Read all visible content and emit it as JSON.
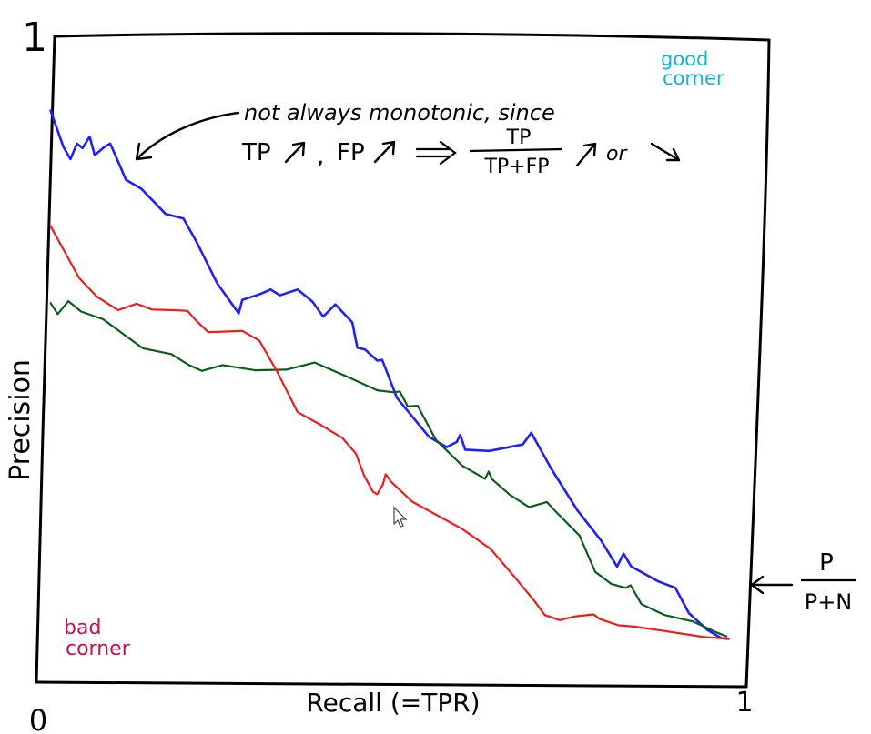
{
  "chart_data": {
    "type": "line",
    "xlabel": "Recall (=TPR)",
    "ylabel": "Precision",
    "x_ticks": [
      "0",
      "1"
    ],
    "y_ticks": [
      "1"
    ],
    "xlim": [
      0,
      1
    ],
    "ylim": [
      0,
      1
    ],
    "grid": false,
    "legend": "none",
    "series": [
      {
        "color": "#1f1fff",
        "stroke_width": 2.6,
        "points": [
          [
            0.02,
            0.885
          ],
          [
            0.038,
            0.829
          ],
          [
            0.048,
            0.81
          ],
          [
            0.057,
            0.834
          ],
          [
            0.065,
            0.827
          ],
          [
            0.075,
            0.845
          ],
          [
            0.082,
            0.816
          ],
          [
            0.096,
            0.829
          ],
          [
            0.104,
            0.834
          ],
          [
            0.118,
            0.799
          ],
          [
            0.126,
            0.778
          ],
          [
            0.148,
            0.764
          ],
          [
            0.182,
            0.725
          ],
          [
            0.207,
            0.718
          ],
          [
            0.225,
            0.683
          ],
          [
            0.255,
            0.617
          ],
          [
            0.285,
            0.571
          ],
          [
            0.29,
            0.592
          ],
          [
            0.315,
            0.601
          ],
          [
            0.33,
            0.608
          ],
          [
            0.343,
            0.599
          ],
          [
            0.368,
            0.608
          ],
          [
            0.389,
            0.589
          ],
          [
            0.404,
            0.566
          ],
          [
            0.421,
            0.585
          ],
          [
            0.445,
            0.557
          ],
          [
            0.452,
            0.518
          ],
          [
            0.463,
            0.515
          ],
          [
            0.48,
            0.498
          ],
          [
            0.487,
            0.499
          ],
          [
            0.508,
            0.44
          ],
          [
            0.553,
            0.38
          ],
          [
            0.578,
            0.364
          ],
          [
            0.592,
            0.372
          ],
          [
            0.597,
            0.383
          ],
          [
            0.604,
            0.36
          ],
          [
            0.638,
            0.358
          ],
          [
            0.685,
            0.368
          ],
          [
            0.697,
            0.386
          ],
          [
            0.725,
            0.331
          ],
          [
            0.762,
            0.266
          ],
          [
            0.795,
            0.22
          ],
          [
            0.818,
            0.179
          ],
          [
            0.827,
            0.199
          ],
          [
            0.838,
            0.179
          ],
          [
            0.876,
            0.156
          ],
          [
            0.9,
            0.146
          ],
          [
            0.919,
            0.107
          ],
          [
            0.945,
            0.081
          ],
          [
            0.965,
            0.068
          ],
          [
            0.975,
            0.067
          ]
        ]
      },
      {
        "color": "#0d5c1a",
        "stroke_width": 2.2,
        "points": [
          [
            0.02,
            0.587
          ],
          [
            0.03,
            0.57
          ],
          [
            0.045,
            0.59
          ],
          [
            0.063,
            0.574
          ],
          [
            0.094,
            0.562
          ],
          [
            0.13,
            0.533
          ],
          [
            0.15,
            0.517
          ],
          [
            0.19,
            0.508
          ],
          [
            0.215,
            0.491
          ],
          [
            0.233,
            0.482
          ],
          [
            0.262,
            0.491
          ],
          [
            0.308,
            0.483
          ],
          [
            0.352,
            0.484
          ],
          [
            0.392,
            0.495
          ],
          [
            0.442,
            0.471
          ],
          [
            0.48,
            0.452
          ],
          [
            0.502,
            0.449
          ],
          [
            0.512,
            0.45
          ],
          [
            0.523,
            0.427
          ],
          [
            0.537,
            0.428
          ],
          [
            0.563,
            0.375
          ],
          [
            0.6,
            0.335
          ],
          [
            0.632,
            0.315
          ],
          [
            0.637,
            0.326
          ],
          [
            0.642,
            0.314
          ],
          [
            0.667,
            0.29
          ],
          [
            0.694,
            0.271
          ],
          [
            0.719,
            0.279
          ],
          [
            0.73,
            0.266
          ],
          [
            0.765,
            0.227
          ],
          [
            0.787,
            0.171
          ],
          [
            0.81,
            0.152
          ],
          [
            0.83,
            0.146
          ],
          [
            0.837,
            0.15
          ],
          [
            0.852,
            0.121
          ],
          [
            0.885,
            0.104
          ],
          [
            0.925,
            0.094
          ],
          [
            0.958,
            0.077
          ],
          [
            0.972,
            0.071
          ]
        ]
      },
      {
        "color": "#ef1c1c",
        "stroke_width": 2.2,
        "points": [
          [
            0.02,
            0.706
          ],
          [
            0.035,
            0.676
          ],
          [
            0.06,
            0.626
          ],
          [
            0.085,
            0.597
          ],
          [
            0.115,
            0.576
          ],
          [
            0.141,
            0.586
          ],
          [
            0.163,
            0.577
          ],
          [
            0.195,
            0.576
          ],
          [
            0.213,
            0.575
          ],
          [
            0.224,
            0.561
          ],
          [
            0.242,
            0.542
          ],
          [
            0.29,
            0.544
          ],
          [
            0.314,
            0.529
          ],
          [
            0.339,
            0.481
          ],
          [
            0.368,
            0.418
          ],
          [
            0.401,
            0.398
          ],
          [
            0.431,
            0.378
          ],
          [
            0.45,
            0.354
          ],
          [
            0.462,
            0.319
          ],
          [
            0.474,
            0.295
          ],
          [
            0.48,
            0.291
          ],
          [
            0.488,
            0.306
          ],
          [
            0.492,
            0.322
          ],
          [
            0.5,
            0.31
          ],
          [
            0.53,
            0.279
          ],
          [
            0.6,
            0.237
          ],
          [
            0.64,
            0.206
          ],
          [
            0.675,
            0.161
          ],
          [
            0.702,
            0.125
          ],
          [
            0.716,
            0.104
          ],
          [
            0.737,
            0.096
          ],
          [
            0.76,
            0.102
          ],
          [
            0.785,
            0.105
          ],
          [
            0.793,
            0.098
          ],
          [
            0.82,
            0.088
          ],
          [
            0.842,
            0.086
          ],
          [
            0.88,
            0.08
          ],
          [
            0.94,
            0.07
          ],
          [
            0.975,
            0.067
          ]
        ]
      }
    ],
    "annotations": {
      "good_corner": [
        "good",
        "corner"
      ],
      "bad_corner": [
        "bad",
        "corner"
      ],
      "monotonic_line1": "not always monotonic, since",
      "tp_label": "TP",
      "fp_label": "FP",
      "frac_num": "TP",
      "frac_den": "TP+FP",
      "or_label": "or",
      "baseline_num": "P",
      "baseline_den": "P+N"
    }
  }
}
